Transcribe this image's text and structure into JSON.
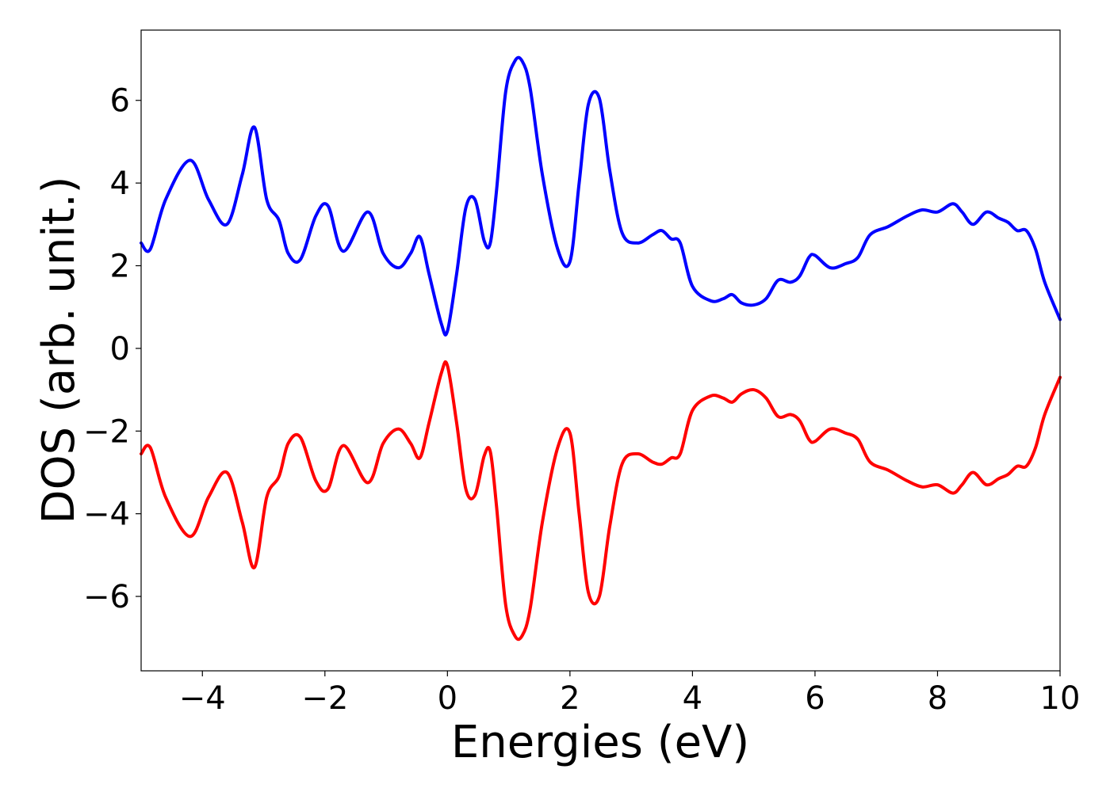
{
  "chart_data": {
    "type": "line",
    "xlabel": "Energies (eV)",
    "ylabel": "DOS (arb. unit.)",
    "xlim": [
      -5,
      10
    ],
    "ylim": [
      -7.8,
      7.7
    ],
    "grid": false,
    "xticks": [
      -4,
      -2,
      0,
      2,
      4,
      6,
      8,
      10
    ],
    "xtick_labels": [
      "−4",
      "−2",
      "0",
      "2",
      "4",
      "6",
      "8",
      "10"
    ],
    "yticks": [
      -6,
      -4,
      -2,
      0,
      2,
      4,
      6
    ],
    "ytick_labels": [
      "−6",
      "−4",
      "−2",
      "0",
      "2",
      "4",
      "6"
    ],
    "series": [
      {
        "color": "#0000ff",
        "x": [
          -5.0,
          -4.85,
          -4.6,
          -4.2,
          -3.9,
          -3.6,
          -3.35,
          -3.15,
          -2.95,
          -2.75,
          -2.6,
          -2.4,
          -2.15,
          -1.95,
          -1.7,
          -1.3,
          -1.05,
          -0.8,
          -0.6,
          -0.45,
          -0.3,
          -0.1,
          0.0,
          0.15,
          0.3,
          0.45,
          0.6,
          0.7,
          0.8,
          0.95,
          1.1,
          1.22,
          1.35,
          1.55,
          1.8,
          2.0,
          2.15,
          2.3,
          2.48,
          2.65,
          2.85,
          3.1,
          3.35,
          3.5,
          3.65,
          3.8,
          4.0,
          4.3,
          4.5,
          4.65,
          4.8,
          5.0,
          5.2,
          5.4,
          5.6,
          5.75,
          5.9,
          6.0,
          6.25,
          6.5,
          6.7,
          6.9,
          7.2,
          7.5,
          7.75,
          8.0,
          8.25,
          8.4,
          8.58,
          8.8,
          9.0,
          9.15,
          9.3,
          9.45,
          9.6,
          9.75,
          10.0
        ],
        "values": [
          2.55,
          2.4,
          3.6,
          4.55,
          3.6,
          3.0,
          4.2,
          5.35,
          3.6,
          3.1,
          2.3,
          2.15,
          3.2,
          3.45,
          2.35,
          3.3,
          2.3,
          1.95,
          2.3,
          2.7,
          1.8,
          0.6,
          0.42,
          1.8,
          3.4,
          3.6,
          2.6,
          2.55,
          3.8,
          6.2,
          6.95,
          6.95,
          6.3,
          4.2,
          2.4,
          2.1,
          4.0,
          5.9,
          6.05,
          4.3,
          2.8,
          2.55,
          2.75,
          2.85,
          2.65,
          2.55,
          1.5,
          1.15,
          1.2,
          1.3,
          1.1,
          1.05,
          1.2,
          1.65,
          1.6,
          1.75,
          2.2,
          2.25,
          1.95,
          2.05,
          2.2,
          2.75,
          2.95,
          3.2,
          3.35,
          3.3,
          3.5,
          3.3,
          3.0,
          3.3,
          3.15,
          3.05,
          2.85,
          2.85,
          2.4,
          1.6,
          0.7
        ]
      },
      {
        "color": "#ff0000",
        "x": [
          -5.0,
          -4.85,
          -4.6,
          -4.2,
          -3.9,
          -3.6,
          -3.35,
          -3.15,
          -2.95,
          -2.75,
          -2.6,
          -2.4,
          -2.15,
          -1.95,
          -1.7,
          -1.3,
          -1.05,
          -0.8,
          -0.6,
          -0.45,
          -0.3,
          -0.1,
          0.0,
          0.15,
          0.3,
          0.45,
          0.6,
          0.7,
          0.8,
          0.95,
          1.1,
          1.22,
          1.35,
          1.55,
          1.8,
          2.0,
          2.15,
          2.3,
          2.48,
          2.65,
          2.85,
          3.1,
          3.35,
          3.5,
          3.65,
          3.8,
          4.0,
          4.3,
          4.5,
          4.65,
          4.8,
          5.0,
          5.2,
          5.4,
          5.6,
          5.75,
          5.9,
          6.0,
          6.25,
          6.5,
          6.7,
          6.9,
          7.2,
          7.5,
          7.75,
          8.0,
          8.25,
          8.4,
          8.58,
          8.8,
          9.0,
          9.15,
          9.3,
          9.45,
          9.6,
          9.75,
          10.0
        ],
        "values": [
          -2.55,
          -2.4,
          -3.6,
          -4.55,
          -3.6,
          -3.0,
          -4.2,
          -5.3,
          -3.6,
          -3.1,
          -2.3,
          -2.15,
          -3.2,
          -3.4,
          -2.35,
          -3.25,
          -2.3,
          -1.95,
          -2.3,
          -2.65,
          -1.8,
          -0.6,
          -0.42,
          -1.8,
          -3.4,
          -3.55,
          -2.6,
          -2.5,
          -3.8,
          -6.2,
          -6.95,
          -6.95,
          -6.3,
          -4.2,
          -2.4,
          -2.05,
          -4.0,
          -5.9,
          -6.0,
          -4.3,
          -2.8,
          -2.55,
          -2.75,
          -2.8,
          -2.65,
          -2.55,
          -1.5,
          -1.15,
          -1.2,
          -1.3,
          -1.1,
          -1.0,
          -1.2,
          -1.65,
          -1.6,
          -1.75,
          -2.2,
          -2.25,
          -1.95,
          -2.05,
          -2.2,
          -2.75,
          -2.95,
          -3.2,
          -3.35,
          -3.3,
          -3.5,
          -3.3,
          -3.0,
          -3.3,
          -3.15,
          -3.05,
          -2.85,
          -2.85,
          -2.4,
          -1.6,
          -0.7
        ]
      }
    ]
  }
}
